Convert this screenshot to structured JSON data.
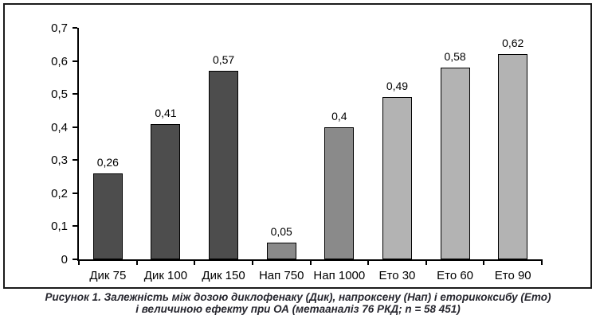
{
  "figure": {
    "caption_line1": "Рисунок 1. Залежність між дозою диклофенаку (Дик), напроксену (Нап) і еторикоксибу (Ето)",
    "caption_line2": "і величиною ефекту при ОА (метааналіз 76 РКД; n = 58 451)"
  },
  "colors": {
    "figure_border": "#1a1a1a",
    "axis": "#000000",
    "bar_border": "#000000",
    "caption_text": "#26262e",
    "group_colors": {
      "diclofenac": "#4d4d4d",
      "naproxen": "#8a8a8a",
      "etoricoxib": "#b3b3b3"
    }
  },
  "chart_data": {
    "type": "bar",
    "categories": [
      "Дик 75",
      "Дик 100",
      "Дик 150",
      "Нап 750",
      "Нап 1000",
      "Ето 30",
      "Ето 60",
      "Ето 90"
    ],
    "values": [
      0.26,
      0.41,
      0.57,
      0.05,
      0.4,
      0.49,
      0.58,
      0.62
    ],
    "value_labels": [
      "0,26",
      "0,41",
      "0,57",
      "0,05",
      "0,4",
      "0,49",
      "0,58",
      "0,62"
    ],
    "bar_groups": [
      "diclofenac",
      "diclofenac",
      "diclofenac",
      "naproxen",
      "naproxen",
      "etoricoxib",
      "etoricoxib",
      "etoricoxib"
    ],
    "y_tick_labels": [
      "0",
      "0,1",
      "0,2",
      "0,3",
      "0,4",
      "0,5",
      "0,6",
      "0,7"
    ],
    "ylim": [
      0,
      0.7
    ],
    "xlabel": "",
    "ylabel": "",
    "grid": false,
    "legend": false,
    "title": "",
    "subtitle_caption": "Рисунок 1. Залежність між дозою диклофенаку (Дик), напроксену (Нап) і еторикоксибу (Ето) і величиною ефекту при ОА (метааналіз 76 РКД; n = 58 451)"
  }
}
